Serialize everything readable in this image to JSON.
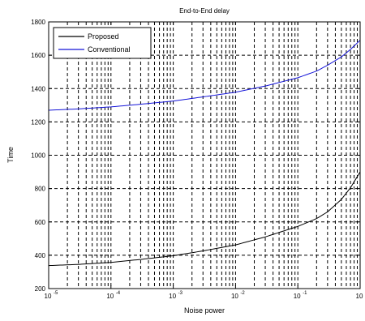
{
  "chart_data": {
    "type": "line",
    "title": "End-to-End delay",
    "xlabel": "Noise power",
    "ylabel": "Time",
    "xscale": "log",
    "xlim": [
      1e-05,
      1
    ],
    "ylim": [
      200,
      1800
    ],
    "xticks": [
      1e-05,
      0.0001,
      0.001,
      0.01,
      0.1,
      1
    ],
    "xtick_labels": [
      {
        "base": "10",
        "exp": "-5"
      },
      {
        "base": "10",
        "exp": "-4"
      },
      {
        "base": "10",
        "exp": "-3"
      },
      {
        "base": "10",
        "exp": "-2"
      },
      {
        "base": "10",
        "exp": "-1"
      },
      {
        "base": "10",
        "exp": "0"
      }
    ],
    "yticks": [
      200,
      400,
      600,
      800,
      1000,
      1200,
      1400,
      1600,
      1800
    ],
    "grid": true,
    "legend_position": "top-left",
    "x": [
      1e-05,
      3e-05,
      0.0001,
      0.0003,
      0.001,
      0.003,
      0.01,
      0.03,
      0.1,
      0.2,
      0.3,
      0.5,
      0.7,
      1
    ],
    "series": [
      {
        "name": "Proposed",
        "color": "#000000",
        "values": [
          338,
          345,
          357,
          375,
          397,
          426,
          462,
          510,
          573,
          620,
          660,
          735,
          805,
          900
        ]
      },
      {
        "name": "Conventional",
        "color": "#1414d8",
        "values": [
          1270,
          1278,
          1290,
          1306,
          1325,
          1350,
          1378,
          1415,
          1465,
          1505,
          1540,
          1590,
          1635,
          1690
        ]
      }
    ]
  }
}
